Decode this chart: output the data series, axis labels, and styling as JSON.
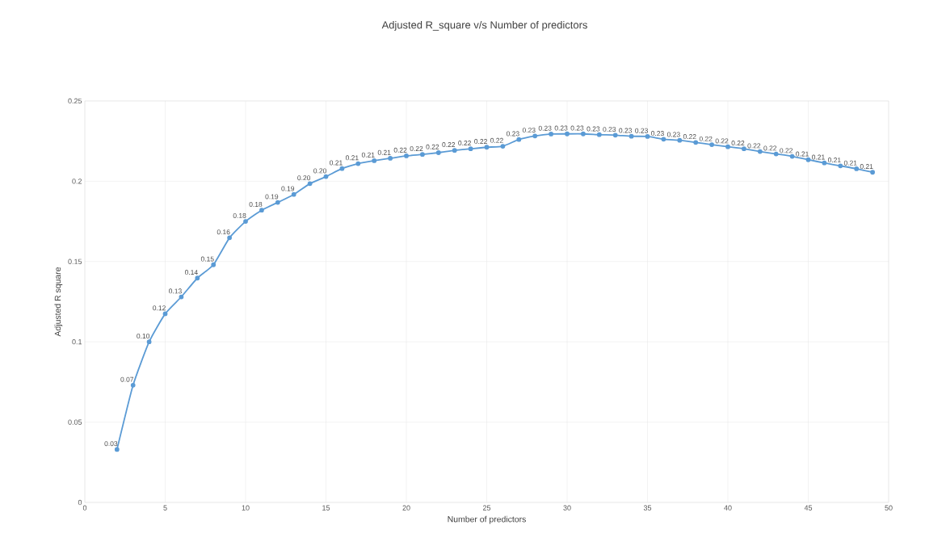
{
  "chart_data": {
    "type": "line",
    "title": "Adjusted R_square  v/s Number of predictors",
    "xlabel": "Number of predictors",
    "ylabel": "Adjusted R square",
    "x": [
      2,
      3,
      4,
      5,
      6,
      7,
      8,
      9,
      10,
      11,
      12,
      13,
      14,
      15,
      16,
      17,
      18,
      19,
      20,
      21,
      22,
      23,
      24,
      25,
      26,
      27,
      28,
      29,
      30,
      31,
      32,
      33,
      34,
      35,
      36,
      37,
      38,
      39,
      40,
      41,
      42,
      43,
      44,
      45,
      46,
      47,
      48,
      49
    ],
    "series": [
      {
        "color": "#5b9bd5",
        "values": [
          0.033,
          0.073,
          0.1,
          0.1175,
          0.128,
          0.1397,
          0.148,
          0.1648,
          0.175,
          0.182,
          0.1868,
          0.1918,
          0.1985,
          0.2029,
          0.2079,
          0.211,
          0.2128,
          0.2143,
          0.2158,
          0.2167,
          0.2178,
          0.2192,
          0.2202,
          0.2212,
          0.2218,
          0.226,
          0.2282,
          0.2294,
          0.2295,
          0.2295,
          0.229,
          0.2287,
          0.228,
          0.2279,
          0.2262,
          0.2255,
          0.2242,
          0.2228,
          0.2215,
          0.2202,
          0.2185,
          0.217,
          0.2155,
          0.2134,
          0.2114,
          0.2096,
          0.2078,
          0.2056
        ],
        "value_labels": [
          "0.03",
          "0.07",
          "0.10",
          "0.12",
          "0.13",
          "0.14",
          "0.15",
          "0.16",
          "0.18",
          "0.18",
          "0.19",
          "0.19",
          "0.20",
          "0.20",
          "0.21",
          "0.21",
          "0.21",
          "0.21",
          "0.22",
          "0.22",
          "0.22",
          "0.22",
          "0.22",
          "0.22",
          "0.22",
          "0.23",
          "0.23",
          "0.23",
          "0.23",
          "0.23",
          "0.23",
          "0.23",
          "0.23",
          "0.23",
          "0.23",
          "0.23",
          "0.22",
          "0.22",
          "0.22",
          "0.22",
          "0.22",
          "0.22",
          "0.22",
          "0.21",
          "0.21",
          "0.21",
          "0.21",
          "0.21"
        ]
      }
    ],
    "xlim": [
      0,
      50
    ],
    "ylim": [
      0,
      0.25
    ],
    "xticks": [
      0,
      5,
      10,
      15,
      20,
      25,
      30,
      35,
      40,
      45,
      50
    ],
    "yticks": [
      0,
      0.05,
      0.1,
      0.15,
      0.2,
      0.25
    ],
    "grid": true,
    "marker": "circle",
    "line_style": "solid"
  }
}
